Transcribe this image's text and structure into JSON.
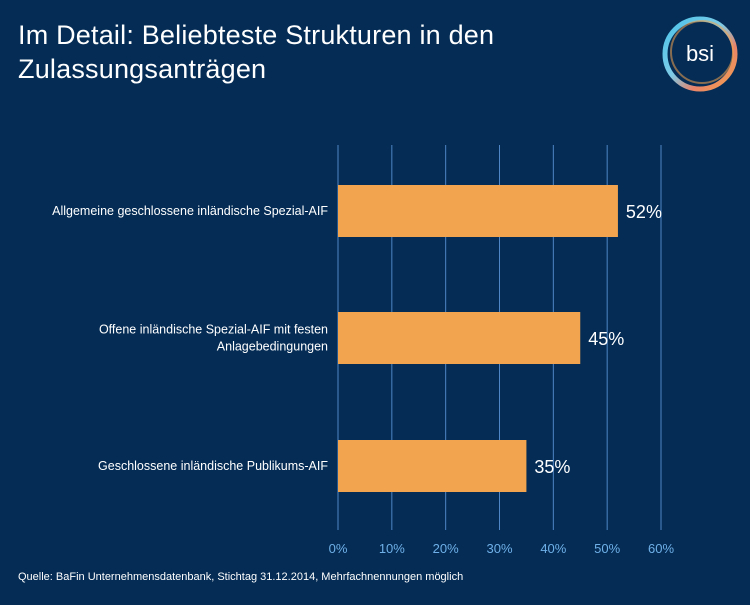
{
  "header": {
    "title": "Im Detail: Beliebteste Strukturen in den Zulassungsanträgen",
    "logo_text": "bsi"
  },
  "colors": {
    "background": "#042c55",
    "bar": "#f2a44f",
    "grid": "#4f86c6",
    "tick_label": "#6fb0e8",
    "text": "#ffffff"
  },
  "chart_data": {
    "type": "bar",
    "orientation": "horizontal",
    "title": "Im Detail: Beliebteste Strukturen in den Zulassungsanträgen",
    "categories": [
      [
        "Allgemeine geschlossene inländische Spezial-AIF"
      ],
      [
        "Offene inländische Spezial-AIF mit festen",
        "Anlagebedingungen"
      ],
      [
        "Geschlossene inländische Publikums-AIF"
      ]
    ],
    "values": [
      52,
      45,
      35
    ],
    "value_labels": [
      "52%",
      "45%",
      "35%"
    ],
    "xlim": [
      0,
      60
    ],
    "xticks": [
      0,
      10,
      20,
      30,
      40,
      50,
      60
    ],
    "xtick_labels": [
      "0%",
      "10%",
      "20%",
      "30%",
      "40%",
      "50%",
      "60%"
    ],
    "grid": true,
    "xlabel": "",
    "ylabel": ""
  },
  "footer": {
    "source": "Quelle: BaFin Unternehmensdatenbank, Stichtag 31.12.2014, Mehrfachnennungen möglich"
  }
}
